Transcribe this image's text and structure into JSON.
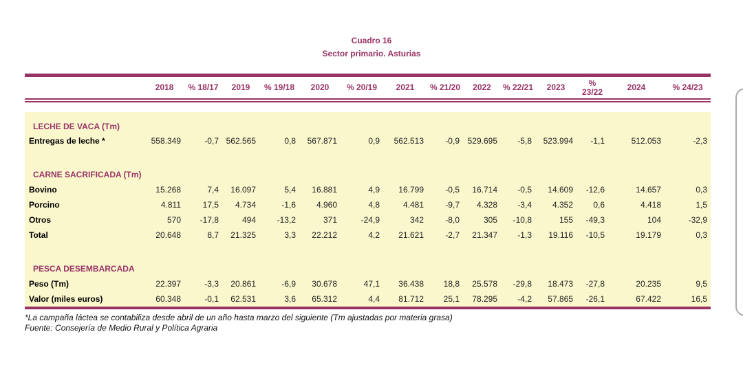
{
  "title": {
    "line1": "Cuadro 16",
    "line2": "Sector primario. Asturias"
  },
  "columns": [
    "2018",
    "% 18/17",
    "2019",
    "% 19/18",
    "2020",
    "% 20/19",
    "2021",
    "% 21/20",
    "2022",
    "% 22/21",
    "2023",
    "%\n23/22",
    "2024",
    "% 24/23"
  ],
  "sections": [
    {
      "header": "LECHE DE VACA (Tm)",
      "rows": [
        {
          "label": "Entregas de leche *",
          "values": [
            "558.349",
            "-0,7",
            "562.565",
            "0,8",
            "567.871",
            "0,9",
            "562.513",
            "-0,9",
            "529.695",
            "-5,8",
            "523.994",
            "-1,1",
            "512.053",
            "-2,3"
          ]
        }
      ]
    },
    {
      "header": "CARNE SACRIFICADA (Tm)",
      "rows": [
        {
          "label": "Bovino",
          "values": [
            "15.268",
            "7,4",
            "16.097",
            "5,4",
            "16.881",
            "4,9",
            "16.799",
            "-0,5",
            "16.714",
            "-0,5",
            "14.609",
            "-12,6",
            "14.657",
            "0,3"
          ]
        },
        {
          "label": "Porcino",
          "values": [
            "4.811",
            "17,5",
            "4.734",
            "-1,6",
            "4.960",
            "4,8",
            "4.481",
            "-9,7",
            "4.328",
            "-3,4",
            "4.352",
            "0,6",
            "4.418",
            "1,5"
          ]
        },
        {
          "label": "Otros",
          "values": [
            "570",
            "-17,8",
            "494",
            "-13,2",
            "371",
            "-24,9",
            "342",
            "-8,0",
            "305",
            "-10,8",
            "155",
            "-49,3",
            "104",
            "-32,9"
          ]
        },
        {
          "label": "Total",
          "values": [
            "20.648",
            "8,7",
            "21.325",
            "3,3",
            "22.212",
            "4,2",
            "21.621",
            "-2,7",
            "21.347",
            "-1,3",
            "19.116",
            "-10,5",
            "19.179",
            "0,3"
          ]
        }
      ]
    },
    {
      "header": "PESCA DESEMBARCADA",
      "rows": [
        {
          "label": "Peso (Tm)",
          "values": [
            "22.397",
            "-3,3",
            "20.861",
            "-6,9",
            "30.678",
            "47,1",
            "36.438",
            "18,8",
            "25.578",
            "-29,8",
            "18.473",
            "-27,8",
            "20.235",
            "9,5"
          ]
        },
        {
          "label": "Valor (miles euros)",
          "values": [
            "60.348",
            "-0,1",
            "62.531",
            "3,6",
            "65.312",
            "4,4",
            "81.712",
            "25,1",
            "78.295",
            "-4,2",
            "57.865",
            "-26,1",
            "67.422",
            "16,5"
          ]
        }
      ]
    }
  ],
  "footnotes": [
    "*La campaña láctea se contabiliza desde abril de un año hasta marzo del siguiente (Tm ajustadas por materia grasa)",
    "Fuente: Consejería de Medio Rural y Política Agraria"
  ],
  "colors": {
    "accent": "#993366",
    "panel_background": "#FAF7CD",
    "body_text": "#222222"
  }
}
